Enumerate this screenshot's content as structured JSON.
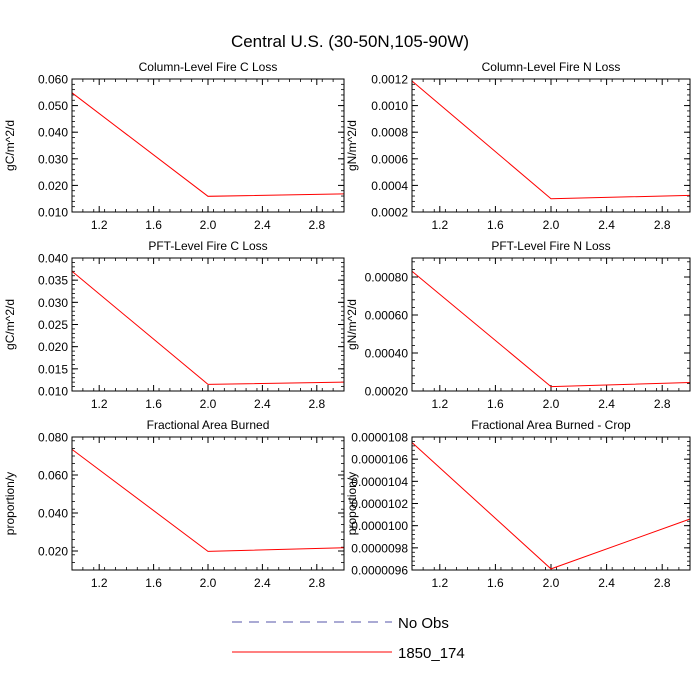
{
  "title": "Central U.S. (30-50N,105-90W)",
  "chart_data": [
    {
      "type": "line",
      "title": "Column-Level Fire C Loss",
      "ylabel": "gC/m^2/d",
      "xlabel": "",
      "xlim": [
        1.0,
        3.0
      ],
      "ylim": [
        0.01,
        0.06
      ],
      "xticks": [
        1.2,
        1.6,
        2.0,
        2.4,
        2.8
      ],
      "xtick_labels": [
        "1.2",
        "1.6",
        "2.0",
        "2.4",
        "2.8"
      ],
      "yticks": [
        0.01,
        0.02,
        0.03,
        0.04,
        0.05,
        0.06
      ],
      "ytick_labels": [
        "0.010",
        "0.020",
        "0.030",
        "0.040",
        "0.050",
        "0.060"
      ],
      "series": [
        {
          "name": "1850_174",
          "x": [
            1,
            2,
            3
          ],
          "y": [
            0.0548,
            0.0159,
            0.0168
          ]
        }
      ]
    },
    {
      "type": "line",
      "title": "Column-Level Fire N Loss",
      "ylabel": "gN/m^2/d",
      "xlabel": "",
      "xlim": [
        1.0,
        3.0
      ],
      "ylim": [
        0.0002,
        0.0012
      ],
      "xticks": [
        1.2,
        1.6,
        2.0,
        2.4,
        2.8
      ],
      "xtick_labels": [
        "1.2",
        "1.6",
        "2.0",
        "2.4",
        "2.8"
      ],
      "yticks": [
        0.0002,
        0.0004,
        0.0006,
        0.0008,
        0.001,
        0.0012
      ],
      "ytick_labels": [
        "0.0002",
        "0.0004",
        "0.0006",
        "0.0008",
        "0.0010",
        "0.0012"
      ],
      "series": [
        {
          "name": "1850_174",
          "x": [
            1,
            2,
            3
          ],
          "y": [
            0.001185,
            0.0003,
            0.000325
          ]
        }
      ]
    },
    {
      "type": "line",
      "title": "PFT-Level Fire C Loss",
      "ylabel": "gC/m^2/d",
      "xlabel": "",
      "xlim": [
        1.0,
        3.0
      ],
      "ylim": [
        0.01,
        0.04
      ],
      "xticks": [
        1.2,
        1.6,
        2.0,
        2.4,
        2.8
      ],
      "xtick_labels": [
        "1.2",
        "1.6",
        "2.0",
        "2.4",
        "2.8"
      ],
      "yticks": [
        0.01,
        0.015,
        0.02,
        0.025,
        0.03,
        0.035,
        0.04
      ],
      "ytick_labels": [
        "0.010",
        "0.015",
        "0.020",
        "0.025",
        "0.030",
        "0.035",
        "0.040"
      ],
      "series": [
        {
          "name": "1850_174",
          "x": [
            1,
            2,
            3
          ],
          "y": [
            0.037,
            0.0115,
            0.012
          ]
        }
      ]
    },
    {
      "type": "line",
      "title": "PFT-Level Fire N Loss",
      "ylabel": "gN/m^2/d",
      "xlabel": "",
      "xlim": [
        1.0,
        3.0
      ],
      "ylim": [
        0.0002,
        0.0009
      ],
      "xticks": [
        1.2,
        1.6,
        2.0,
        2.4,
        2.8
      ],
      "xtick_labels": [
        "1.2",
        "1.6",
        "2.0",
        "2.4",
        "2.8"
      ],
      "yticks": [
        0.0002,
        0.0004,
        0.0006,
        0.0008
      ],
      "ytick_labels": [
        "0.00020",
        "0.00040",
        "0.00060",
        "0.00080"
      ],
      "series": [
        {
          "name": "1850_174",
          "x": [
            1,
            2,
            3
          ],
          "y": [
            0.00083,
            0.000223,
            0.000245
          ]
        }
      ]
    },
    {
      "type": "line",
      "title": "Fractional Area Burned",
      "ylabel": "proportion/y",
      "xlabel": "",
      "xlim": [
        1.0,
        3.0
      ],
      "ylim": [
        0.01,
        0.08
      ],
      "xticks": [
        1.2,
        1.6,
        2.0,
        2.4,
        2.8
      ],
      "xtick_labels": [
        "1.2",
        "1.6",
        "2.0",
        "2.4",
        "2.8"
      ],
      "yticks": [
        0.02,
        0.04,
        0.06,
        0.08
      ],
      "ytick_labels": [
        "0.020",
        "0.040",
        "0.060",
        "0.080"
      ],
      "series": [
        {
          "name": "1850_174",
          "x": [
            1,
            2,
            3
          ],
          "y": [
            0.0735,
            0.0198,
            0.0217
          ]
        }
      ]
    },
    {
      "type": "line",
      "title": "Fractional Area Burned - Crop",
      "ylabel": "proportion/y",
      "xlabel": "",
      "xlim": [
        1.0,
        3.0
      ],
      "ylim": [
        9.6e-06,
        1.08e-05
      ],
      "xticks": [
        1.2,
        1.6,
        2.0,
        2.4,
        2.8
      ],
      "xtick_labels": [
        "1.2",
        "1.6",
        "2.0",
        "2.4",
        "2.8"
      ],
      "yticks": [
        9.6e-06,
        9.8e-06,
        1e-05,
        1.02e-05,
        1.04e-05,
        1.06e-05,
        1.08e-05
      ],
      "ytick_labels": [
        "0.0000096",
        "0.0000098",
        "0.0000100",
        "0.0000102",
        "0.0000104",
        "0.0000106",
        "0.0000108"
      ],
      "series": [
        {
          "name": "1850_174",
          "x": [
            1,
            2,
            3
          ],
          "y": [
            1.075e-05,
            9.61e-06,
            1.006e-05
          ]
        }
      ]
    }
  ],
  "legend": [
    {
      "label": "No Obs",
      "color": "#5555aa",
      "style": "dashed"
    },
    {
      "label": "1850_174",
      "color": "#ff0000",
      "style": "solid"
    }
  ],
  "colors": {
    "series": "#ff0000",
    "obs": "#5555aa",
    "axis": "#000000"
  }
}
